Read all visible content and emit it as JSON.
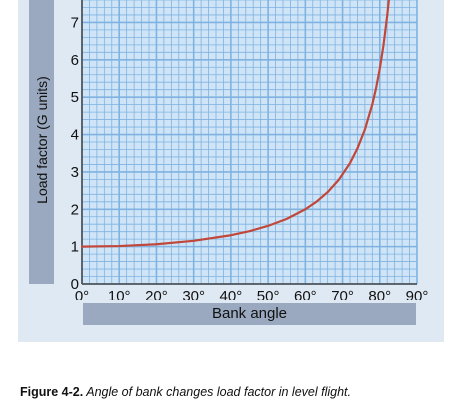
{
  "chart_data": {
    "type": "line",
    "title": "",
    "xlabel": "Bank angle",
    "ylabel": "Load factor (G units)",
    "x_ticks": [
      "0°",
      "10°",
      "20°",
      "30°",
      "40°",
      "50°",
      "60°",
      "70°",
      "80°",
      "90°"
    ],
    "y_ticks": [
      "0",
      "1",
      "2",
      "3",
      "4",
      "5",
      "6",
      "7"
    ],
    "xlim": [
      0,
      90
    ],
    "ylim": [
      0,
      7.6
    ],
    "grid": true,
    "series": [
      {
        "x": [
          0,
          10,
          20,
          30,
          40,
          45,
          50,
          55,
          60,
          63,
          66,
          69,
          72,
          74,
          76,
          78,
          79,
          80,
          81,
          82,
          82.5
        ],
        "y": [
          1.0,
          1.015,
          1.064,
          1.155,
          1.305,
          1.414,
          1.556,
          1.743,
          2.0,
          2.203,
          2.459,
          2.79,
          3.236,
          3.628,
          4.134,
          4.81,
          5.241,
          5.759,
          6.392,
          7.185,
          7.66
        ]
      }
    ],
    "colors": {
      "line": "#c0473a",
      "grid": "#7fb2e0",
      "plot_bg": "#cfe5f7",
      "panel_bg": "#dfe9f3",
      "label_bar": "#9aa9bf"
    }
  },
  "caption": {
    "lead": "Figure 4-2.",
    "text": " Angle of bank changes load factor in level flight."
  }
}
